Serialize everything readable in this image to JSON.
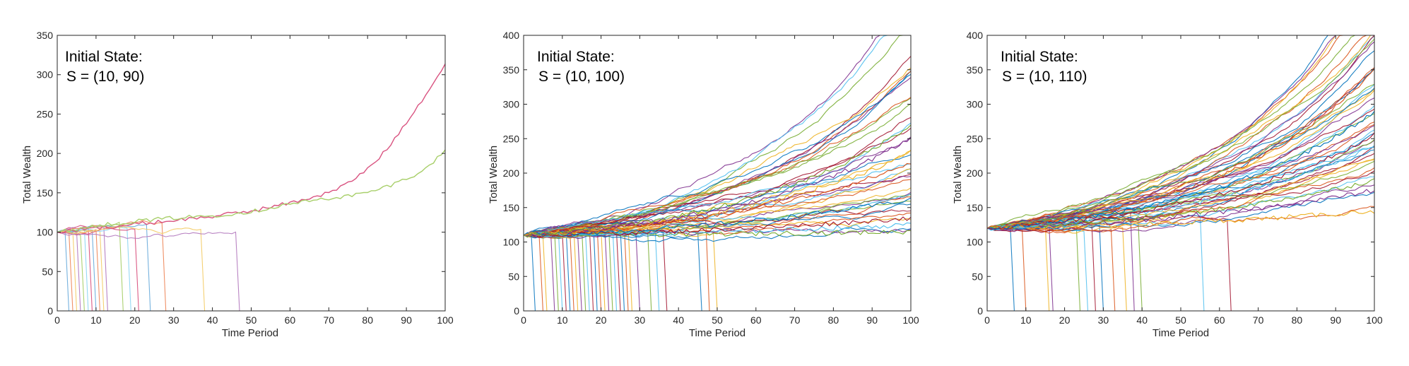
{
  "chart_data": [
    {
      "type": "line",
      "title": "",
      "annotation": [
        "Initial State:",
        "S = (10, 90)"
      ],
      "xlabel": "Time Period",
      "ylabel": "Total Wealth",
      "xlim": [
        0,
        100
      ],
      "ylim": [
        0,
        350
      ],
      "xticks": [
        "0",
        "10",
        "20",
        "30",
        "40",
        "50",
        "60",
        "70",
        "80",
        "90",
        "100"
      ],
      "yticks": [
        "0",
        "50",
        "100",
        "150",
        "200",
        "250",
        "300",
        "350"
      ],
      "grid": false,
      "start_value": 100,
      "ruin_periods": [
        3,
        4,
        5,
        6,
        7,
        8,
        9,
        10,
        11,
        12,
        13,
        17,
        19,
        21,
        24,
        28,
        38,
        47
      ],
      "surviving_paths": [
        {
          "color": "#D95380",
          "x": [
            0,
            10,
            20,
            30,
            40,
            50,
            60,
            70,
            75,
            80,
            85,
            90,
            95,
            100
          ],
          "y": [
            100,
            105,
            110,
            115,
            120,
            127,
            137,
            150,
            162,
            180,
            205,
            240,
            275,
            312
          ]
        },
        {
          "color": "#A8CF6A",
          "x": [
            0,
            10,
            20,
            30,
            40,
            50,
            60,
            70,
            75,
            80,
            85,
            90,
            95,
            100
          ],
          "y": [
            100,
            108,
            114,
            118,
            121,
            126,
            136,
            143,
            146,
            150,
            158,
            168,
            180,
            204
          ]
        }
      ]
    },
    {
      "type": "line",
      "title": "",
      "annotation": [
        "Initial State:",
        "S = (10, 100)"
      ],
      "xlabel": "Time Period",
      "ylabel": "Total Wealth",
      "xlim": [
        0,
        100
      ],
      "ylim": [
        0,
        400
      ],
      "xticks": [
        "0",
        "10",
        "20",
        "30",
        "40",
        "50",
        "60",
        "70",
        "80",
        "90",
        "100"
      ],
      "yticks": [
        "0",
        "50",
        "100",
        "150",
        "200",
        "250",
        "300",
        "350",
        "400"
      ],
      "grid": false,
      "start_value": 110,
      "ruin_periods": [
        3,
        5,
        6,
        8,
        9,
        10,
        11,
        12,
        13,
        14,
        15,
        16,
        17,
        18,
        19,
        20,
        21,
        22,
        23,
        24,
        25,
        26,
        27,
        28,
        30,
        33,
        35,
        37,
        46,
        48,
        50
      ],
      "surviving_growth_rates": [
        0.013,
        0.0125,
        0.012,
        0.0115,
        0.011,
        0.0107,
        0.0104,
        0.01,
        0.0097,
        0.0094,
        0.0091,
        0.0088,
        0.0085,
        0.0082,
        0.0079,
        0.0076,
        0.0073,
        0.007,
        0.0067,
        0.0064,
        0.0061,
        0.0058,
        0.0055,
        0.0052,
        0.0049,
        0.0046,
        0.0043,
        0.004,
        0.0036,
        0.0032,
        0.0028,
        0.0024,
        0.002,
        0.0015,
        0.001,
        0.0006
      ],
      "surviving_final_values_low": [
        115,
        125,
        135,
        162,
        215,
        230,
        250,
        270
      ]
    },
    {
      "type": "line",
      "title": "",
      "annotation": [
        "Initial State:",
        "S = (10, 110)"
      ],
      "xlabel": "Time Period",
      "ylabel": "Total Wealth",
      "xlim": [
        0,
        100
      ],
      "ylim": [
        0,
        400
      ],
      "xticks": [
        "0",
        "10",
        "20",
        "30",
        "40",
        "50",
        "60",
        "70",
        "80",
        "90",
        "100"
      ],
      "yticks": [
        "0",
        "50",
        "100",
        "150",
        "200",
        "250",
        "300",
        "350",
        "400"
      ],
      "grid": false,
      "start_value": 120,
      "ruin_periods": [
        7,
        10,
        16,
        17,
        24,
        26,
        28,
        30,
        33,
        36,
        38,
        40,
        56,
        63
      ],
      "surviving_growth_rates": [
        0.0135,
        0.013,
        0.0127,
        0.0124,
        0.0121,
        0.0118,
        0.0115,
        0.0112,
        0.011,
        0.0108,
        0.0106,
        0.0104,
        0.0102,
        0.01,
        0.0098,
        0.0096,
        0.0094,
        0.0092,
        0.009,
        0.0088,
        0.0086,
        0.0084,
        0.0082,
        0.008,
        0.0078,
        0.0076,
        0.0074,
        0.0072,
        0.007,
        0.0068,
        0.0066,
        0.0064,
        0.0062,
        0.006,
        0.0058,
        0.0056,
        0.0054,
        0.0052,
        0.005,
        0.0048,
        0.0046,
        0.0044,
        0.0042,
        0.004
      ],
      "surviving_final_values_low": [
        145,
        175,
        190,
        240,
        255,
        290,
        350
      ]
    }
  ],
  "series_palette": [
    "#0072BD",
    "#D95319",
    "#EDB120",
    "#7E2F8E",
    "#77AC30",
    "#4DBEEE",
    "#A2142F"
  ],
  "light_palette": [
    "#6FAEDC",
    "#EE8A5E",
    "#F3CE6B",
    "#B57DC0",
    "#A8CF6A",
    "#8FD6F2",
    "#D95380"
  ]
}
